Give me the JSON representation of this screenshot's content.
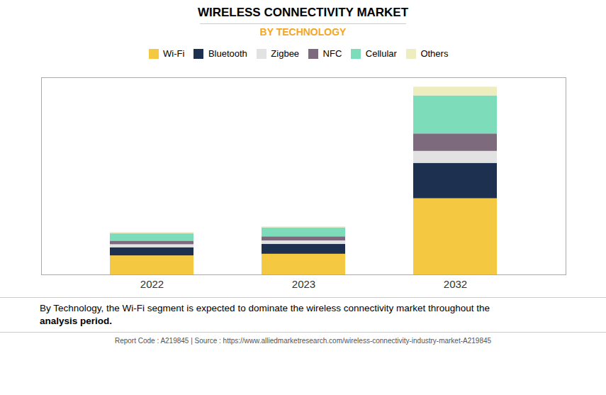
{
  "chart_data": {
    "type": "bar",
    "stacked": true,
    "title": "WIRELESS CONNECTIVITY MARKET",
    "subtitle": "BY TECHNOLOGY",
    "categories": [
      "2022",
      "2023",
      "2032"
    ],
    "series": [
      {
        "name": "Wi-Fi",
        "color": "#F5C842",
        "values": [
          3.5,
          3.8,
          14.0
        ]
      },
      {
        "name": "Bluetooth",
        "color": "#1E3050",
        "values": [
          1.5,
          1.8,
          6.5
        ]
      },
      {
        "name": "Zigbee",
        "color": "#E2E2E2",
        "values": [
          0.55,
          0.65,
          2.2
        ]
      },
      {
        "name": "NFC",
        "color": "#7D6B7D",
        "values": [
          0.65,
          0.75,
          3.2
        ]
      },
      {
        "name": "Cellular",
        "color": "#7DDDBB",
        "values": [
          1.35,
          1.65,
          7.0
        ]
      },
      {
        "name": "Others",
        "color": "#EEEDC0",
        "values": [
          0.25,
          0.18,
          1.6
        ]
      }
    ],
    "ylim": [
      0,
      36.225
    ],
    "tick_labels": "x",
    "grid": false,
    "legend": "top",
    "annotations": [
      "By Technology, the Wi-Fi segment is expected to dominate the wireless connectivity market throughout the",
      "analysis period.",
      "Report Code : A219845  |  Source : https://www.alliedmarketresearch.com/wireless-connectivity-industry-market-A219845"
    ]
  }
}
